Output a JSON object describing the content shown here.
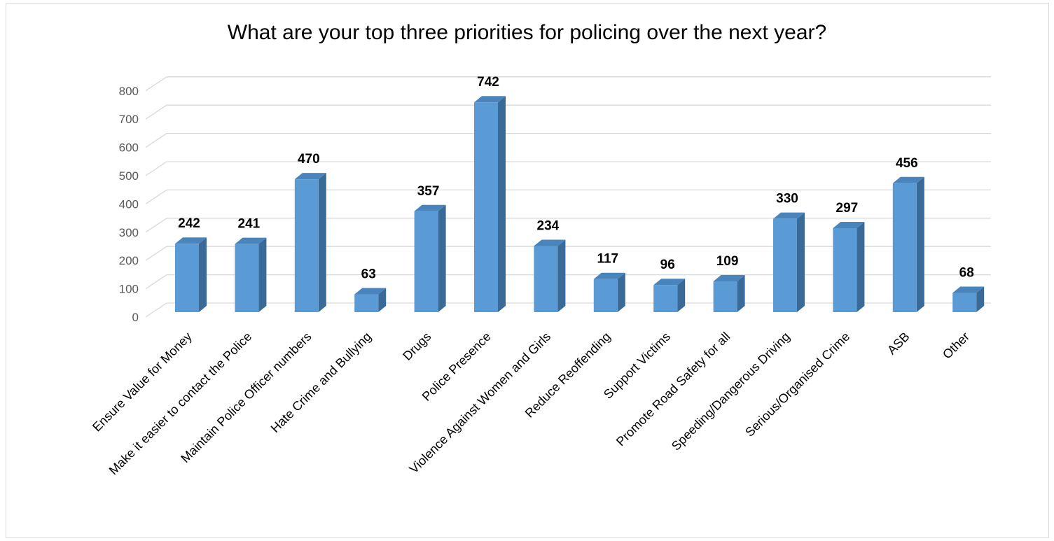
{
  "chart_data": {
    "type": "bar",
    "title": "What are your top three priorities for policing over the next year?",
    "categories": [
      "Ensure Value for Money",
      "Make it easier to contact the Police",
      "Maintain Police Officer numbers",
      "Hate Crime and Bullying",
      "Drugs",
      "Police Presence",
      "Violence Against Women and Girls",
      "Reduce Reoffending",
      "Support Victims",
      "Promote Road Safety for all",
      "Speeding/Dangerous Driving",
      "Serious/Organised Crime",
      "ASB",
      "Other"
    ],
    "values": [
      242,
      241,
      470,
      63,
      357,
      742,
      234,
      117,
      96,
      109,
      330,
      297,
      456,
      68
    ],
    "ylim": [
      0,
      800
    ],
    "yticks": [
      0,
      100,
      200,
      300,
      400,
      500,
      600,
      700,
      800
    ],
    "grid": true,
    "style": "3d-column",
    "colors": {
      "front": "#5b9bd5",
      "side": "#3a6a97",
      "top": "#4a84bd",
      "grid": "#d9d9d9"
    }
  }
}
